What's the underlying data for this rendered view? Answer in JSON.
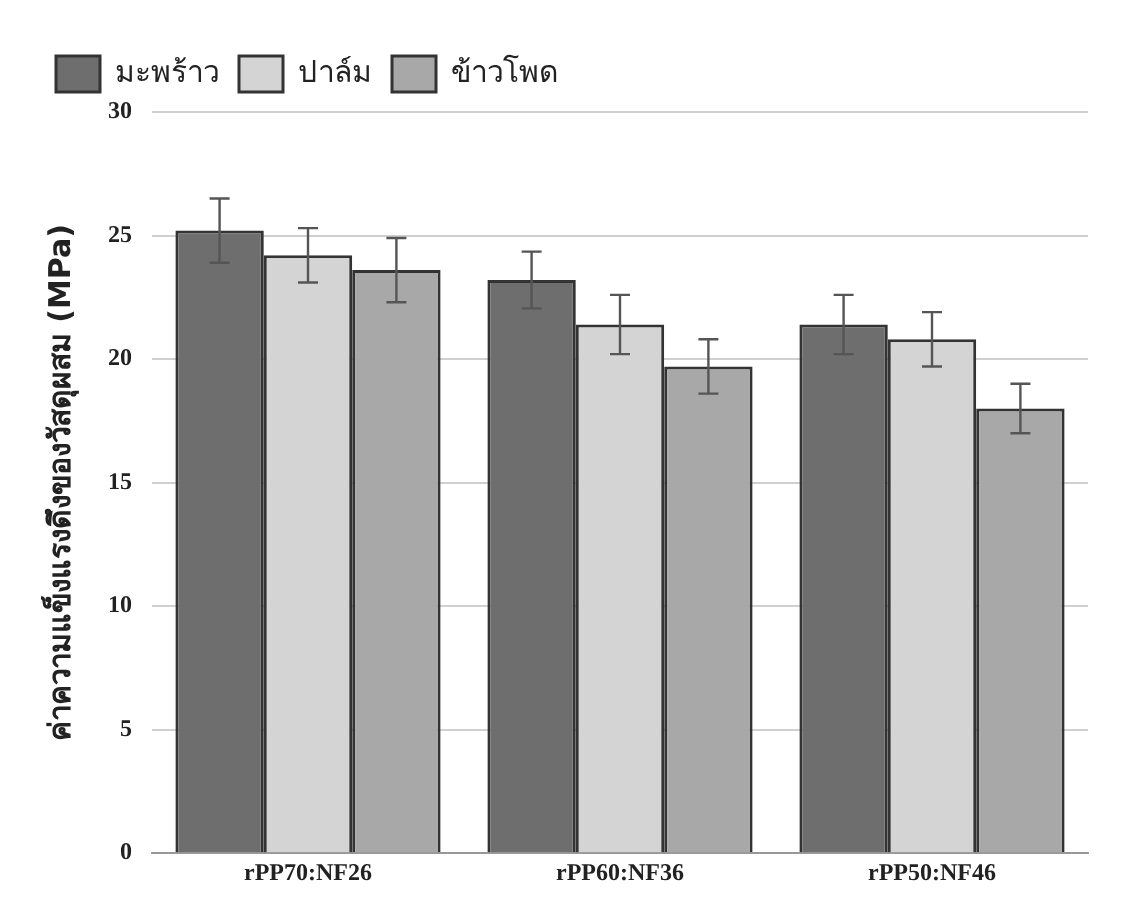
{
  "chart_data": {
    "type": "bar",
    "ylabel": "ค่าความแข็งแรงดึงของวัสดุผสม (MPa)",
    "categories": [
      "rPP70:NF26",
      "rPP60:NF36",
      "rPP50:NF46"
    ],
    "series": [
      {
        "name": "มะพร้าว",
        "color": "#6e6e6e",
        "values": [
          25.2,
          23.2,
          21.4
        ],
        "errors": [
          1.3,
          1.15,
          1.2
        ]
      },
      {
        "name": "ปาล์ม",
        "color": "#d4d4d4",
        "values": [
          24.2,
          21.4,
          20.8
        ],
        "errors": [
          1.1,
          1.2,
          1.1
        ]
      },
      {
        "name": "ข้าวโพด",
        "color": "#a8a8a8",
        "values": [
          23.6,
          19.7,
          18.0
        ],
        "errors": [
          1.3,
          1.1,
          1.0
        ]
      }
    ],
    "ylim": [
      0,
      30
    ],
    "yticks": [
      0,
      5,
      10,
      15,
      20,
      25,
      30
    ],
    "grid": "y",
    "legend": "top left"
  }
}
